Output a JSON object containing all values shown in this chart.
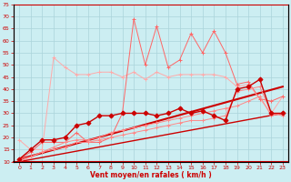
{
  "xlabel": "Vent moyen/en rafales ( km/h )",
  "background_color": "#cceef2",
  "grid_color": "#aad4da",
  "x_values": [
    0,
    1,
    2,
    3,
    4,
    5,
    6,
    7,
    8,
    9,
    10,
    11,
    12,
    13,
    14,
    15,
    16,
    17,
    18,
    19,
    20,
    21,
    22,
    23
  ],
  "line_avg": [
    11,
    12,
    14,
    16,
    18,
    19,
    19,
    20,
    22,
    23,
    24,
    25,
    26,
    27,
    28,
    29,
    30,
    31,
    32,
    33,
    35,
    37,
    29,
    30
  ],
  "line_gust_light": [
    19,
    15,
    15,
    53,
    49,
    46,
    46,
    47,
    47,
    45,
    47,
    44,
    47,
    45,
    46,
    46,
    46,
    46,
    45,
    41,
    42,
    36,
    30,
    37
  ],
  "line_avg2": [
    10,
    12,
    14,
    15,
    16,
    18,
    18,
    19,
    20,
    21,
    22,
    23,
    24,
    25,
    26,
    27,
    27,
    28,
    29,
    39,
    40,
    41,
    30,
    29
  ],
  "line_gust_spiky": [
    11,
    14,
    18,
    18,
    18,
    22,
    18,
    18,
    20,
    30,
    69,
    50,
    66,
    49,
    52,
    63,
    55,
    64,
    55,
    42,
    43,
    36,
    35,
    37
  ],
  "line_dark": [
    11,
    15,
    19,
    19,
    20,
    25,
    26,
    29,
    29,
    30,
    30,
    30,
    29,
    30,
    32,
    30,
    31,
    29,
    27,
    40,
    41,
    44,
    30,
    30
  ],
  "line_trend1_x": [
    0,
    23
  ],
  "line_trend1_y": [
    11,
    41
  ],
  "line_trend2_x": [
    0,
    23
  ],
  "line_trend2_y": [
    10,
    30
  ],
  "ylim": [
    10,
    75
  ],
  "xlim": [
    -0.5,
    23.5
  ],
  "yticks": [
    10,
    15,
    20,
    25,
    30,
    35,
    40,
    45,
    50,
    55,
    60,
    65,
    70,
    75
  ],
  "xticks": [
    0,
    1,
    2,
    3,
    4,
    5,
    6,
    7,
    8,
    9,
    10,
    11,
    12,
    13,
    14,
    15,
    16,
    17,
    18,
    19,
    20,
    21,
    22,
    23
  ],
  "color_light_pink": "#ffaaaa",
  "color_medium_pink": "#ff8888",
  "color_dark_red": "#cc0000",
  "color_spiky": "#ff6666",
  "color_trend_dark": "#cc0000",
  "color_trend_light": "#ff8888"
}
